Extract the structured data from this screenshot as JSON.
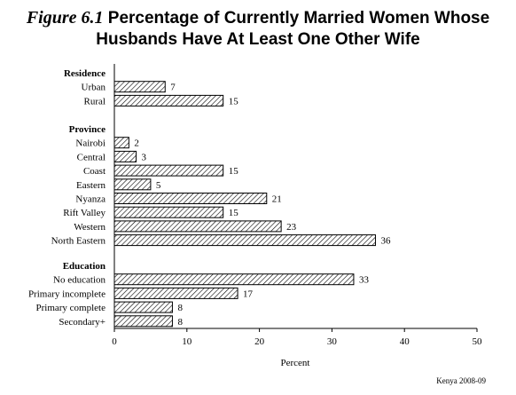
{
  "title": {
    "figure_label": "Figure 6.1",
    "line1": "Percentage of Currently Married Women Whose",
    "line2": "Husbands Have At Least One Other Wife"
  },
  "source_note": "Kenya 2008-09",
  "chart_data": {
    "type": "bar",
    "orientation": "horizontal",
    "title": "Percentage of Currently Married Women Whose Husbands Have At Least One Other Wife",
    "xlabel": "Percent",
    "ylabel": "",
    "xlim": [
      0,
      50
    ],
    "xticks": [
      0,
      10,
      20,
      30,
      40,
      50
    ],
    "grid": false,
    "bar_fill": "diagonal hatch",
    "groups": [
      {
        "name": "Residence",
        "categories": [
          "Urban",
          "Rural"
        ],
        "values": [
          7,
          15
        ]
      },
      {
        "name": "Province",
        "categories": [
          "Nairobi",
          "Central",
          "Coast",
          "Eastern",
          "Nyanza",
          "Rift Valley",
          "Western",
          "North Eastern"
        ],
        "values": [
          2,
          3,
          15,
          5,
          21,
          15,
          23,
          36
        ]
      },
      {
        "name": "Education",
        "categories": [
          "No education",
          "Primary incomplete",
          "Primary complete",
          "Secondary+"
        ],
        "values": [
          33,
          17,
          8,
          8
        ]
      }
    ]
  }
}
